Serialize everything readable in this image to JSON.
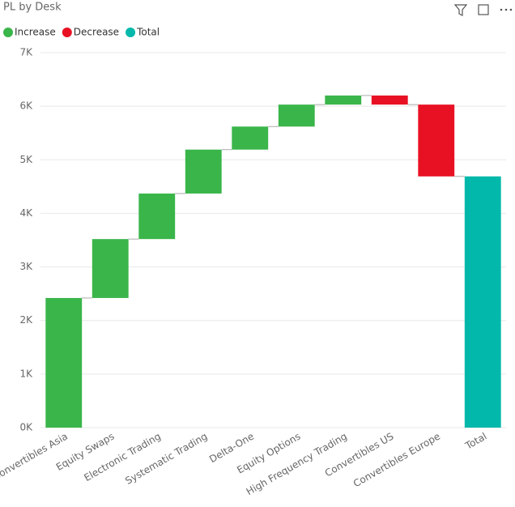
{
  "chart_data": {
    "type": "waterfall",
    "title": "PL by Desk",
    "legend": [
      {
        "name": "Increase",
        "color": "#3ab54a"
      },
      {
        "name": "Decrease",
        "color": "#e81123"
      },
      {
        "name": "Total",
        "color": "#01b8aa"
      }
    ],
    "categories": [
      "Convertibles Asia",
      "Equity Swaps",
      "Electronic Trading",
      "Systematic Trading",
      "Delta-One",
      "Equity Options",
      "High Frequency Trading",
      "Convertibles US",
      "Convertibles Europe"
    ],
    "values": [
      2420,
      1100,
      850,
      820,
      430,
      410,
      170,
      -170,
      -1340
    ],
    "total_label": "Total",
    "total": 4690,
    "ylim": [
      0,
      7000
    ],
    "yticks": [
      {
        "value": 0,
        "label": "0K"
      },
      {
        "value": 1000,
        "label": "1K"
      },
      {
        "value": 2000,
        "label": "2K"
      },
      {
        "value": 3000,
        "label": "3K"
      },
      {
        "value": 4000,
        "label": "4K"
      },
      {
        "value": 5000,
        "label": "5K"
      },
      {
        "value": 6000,
        "label": "6K"
      },
      {
        "value": 7000,
        "label": "7K"
      }
    ],
    "grid": true
  }
}
